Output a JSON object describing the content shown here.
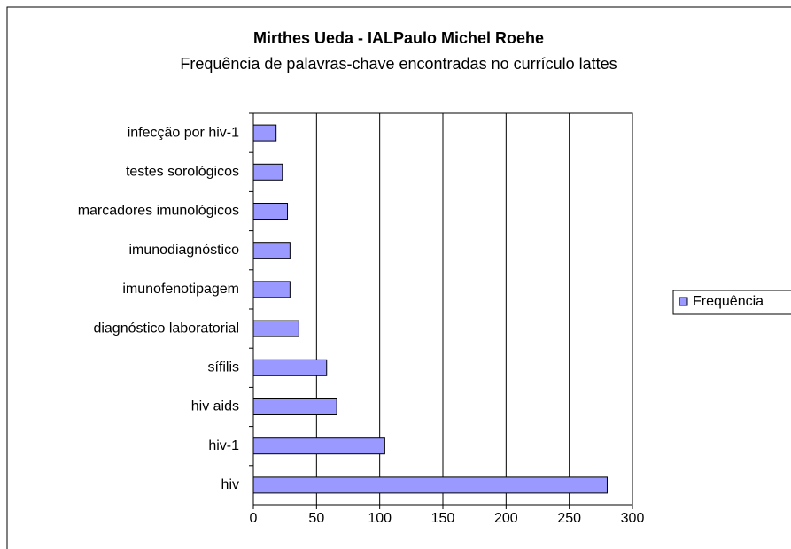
{
  "chart_data": {
    "type": "bar",
    "orientation": "horizontal",
    "title": "Mirthes Ueda - IALPaulo Michel Roehe",
    "subtitle": "Frequência de palavras-chave encontradas no currículo lattes",
    "categories": [
      "infecção por hiv-1",
      "testes sorológicos",
      "marcadores imunológicos",
      "imunodiagnóstico",
      "imunofenotipagem",
      "diagnóstico laboratorial",
      "sífilis",
      "hiv aids",
      "hiv-1",
      "hiv"
    ],
    "series": [
      {
        "name": "Frequência",
        "color": "#9999ff",
        "values": [
          18,
          23,
          27,
          29,
          29,
          36,
          58,
          66,
          104,
          280
        ]
      }
    ],
    "xlim": [
      0,
      300
    ],
    "xticks": [
      0,
      50,
      100,
      150,
      200,
      250,
      300
    ],
    "grid": true,
    "legend": "right"
  }
}
